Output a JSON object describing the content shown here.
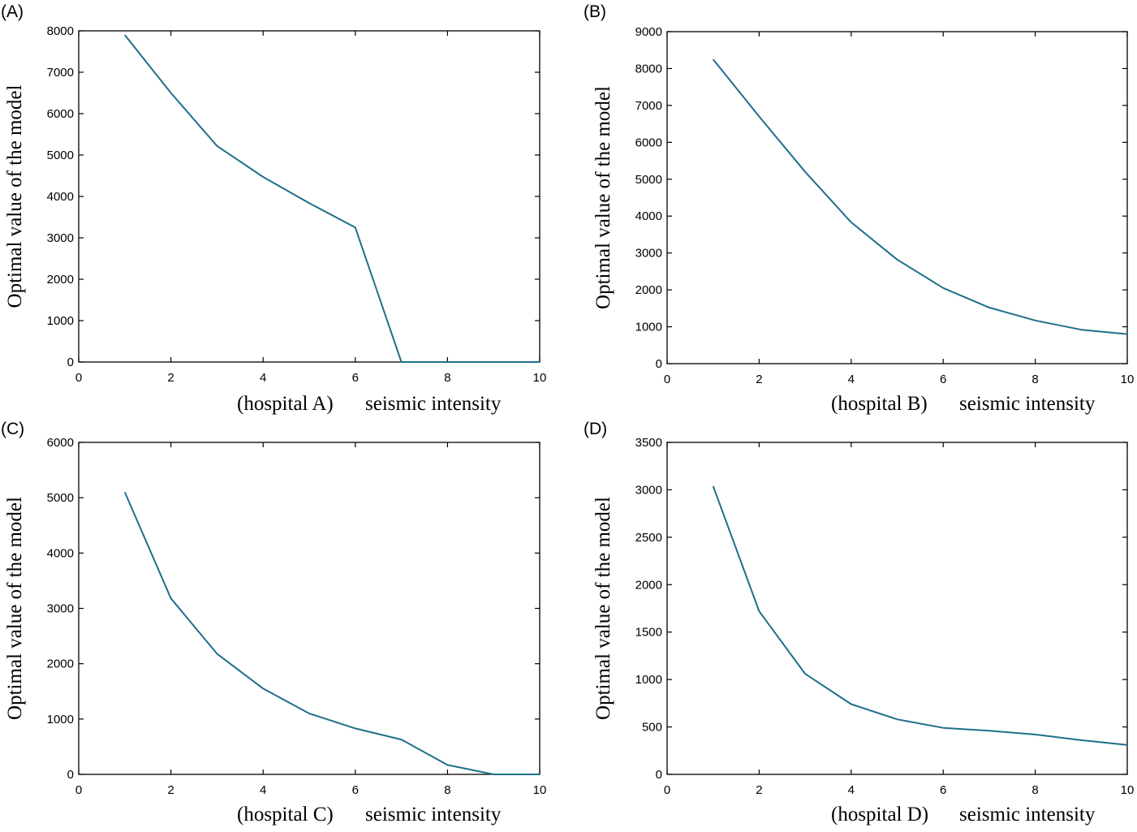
{
  "chart_data": [
    {
      "type": "line",
      "panel_label": "(A)",
      "hospital_label": "(hospital A)",
      "xlabel": "seismic intensity",
      "ylabel": "Optimal value of  the model",
      "xlim": [
        0,
        10
      ],
      "ylim": [
        0,
        8000
      ],
      "xticks": [
        0,
        2,
        4,
        6,
        8,
        10
      ],
      "yticks": [
        0,
        1000,
        2000,
        3000,
        4000,
        5000,
        6000,
        7000,
        8000
      ],
      "line_color": "#1f6f8b",
      "grid": false,
      "x": [
        1,
        2,
        3,
        4,
        5,
        6,
        7,
        8,
        9,
        10
      ],
      "y": [
        7900,
        6500,
        5220,
        4470,
        3840,
        3250,
        0,
        0,
        0,
        0
      ]
    },
    {
      "type": "line",
      "panel_label": "(B)",
      "hospital_label": "(hospital B)",
      "xlabel": "seismic intensity",
      "ylabel": "Optimal value of  the model",
      "xlim": [
        0,
        10
      ],
      "ylim": [
        0,
        9000
      ],
      "xticks": [
        0,
        2,
        4,
        6,
        8,
        10
      ],
      "yticks": [
        0,
        1000,
        2000,
        3000,
        4000,
        5000,
        6000,
        7000,
        8000,
        9000
      ],
      "line_color": "#1f6f8b",
      "grid": false,
      "x": [
        1,
        2,
        3,
        4,
        5,
        6,
        7,
        8,
        9,
        10
      ],
      "y": [
        8250,
        6700,
        5200,
        3830,
        2820,
        2050,
        1520,
        1170,
        920,
        800
      ]
    },
    {
      "type": "line",
      "panel_label": "(C)",
      "hospital_label": "(hospital C)",
      "xlabel": "seismic intensity",
      "ylabel": "Optimal value of  the model",
      "xlim": [
        0,
        10
      ],
      "ylim": [
        0,
        6000
      ],
      "xticks": [
        0,
        2,
        4,
        6,
        8,
        10
      ],
      "yticks": [
        0,
        1000,
        2000,
        3000,
        4000,
        5000,
        6000
      ],
      "line_color": "#1f6f8b",
      "grid": false,
      "x": [
        1,
        2,
        3,
        4,
        5,
        6,
        7,
        8,
        9,
        10
      ],
      "y": [
        5100,
        3180,
        2180,
        1550,
        1100,
        830,
        630,
        170,
        0,
        0
      ]
    },
    {
      "type": "line",
      "panel_label": "(D)",
      "hospital_label": "(hospital D)",
      "xlabel": "seismic intensity",
      "ylabel": "Optimal value of  the model",
      "xlim": [
        0,
        10
      ],
      "ylim": [
        0,
        3500
      ],
      "xticks": [
        0,
        2,
        4,
        6,
        8,
        10
      ],
      "yticks": [
        0,
        500,
        1000,
        1500,
        2000,
        2500,
        3000,
        3500
      ],
      "line_color": "#1f6f8b",
      "grid": false,
      "x": [
        1,
        2,
        3,
        4,
        5,
        6,
        7,
        8,
        9,
        10
      ],
      "y": [
        3040,
        1720,
        1060,
        740,
        580,
        490,
        460,
        420,
        360,
        310
      ]
    }
  ]
}
